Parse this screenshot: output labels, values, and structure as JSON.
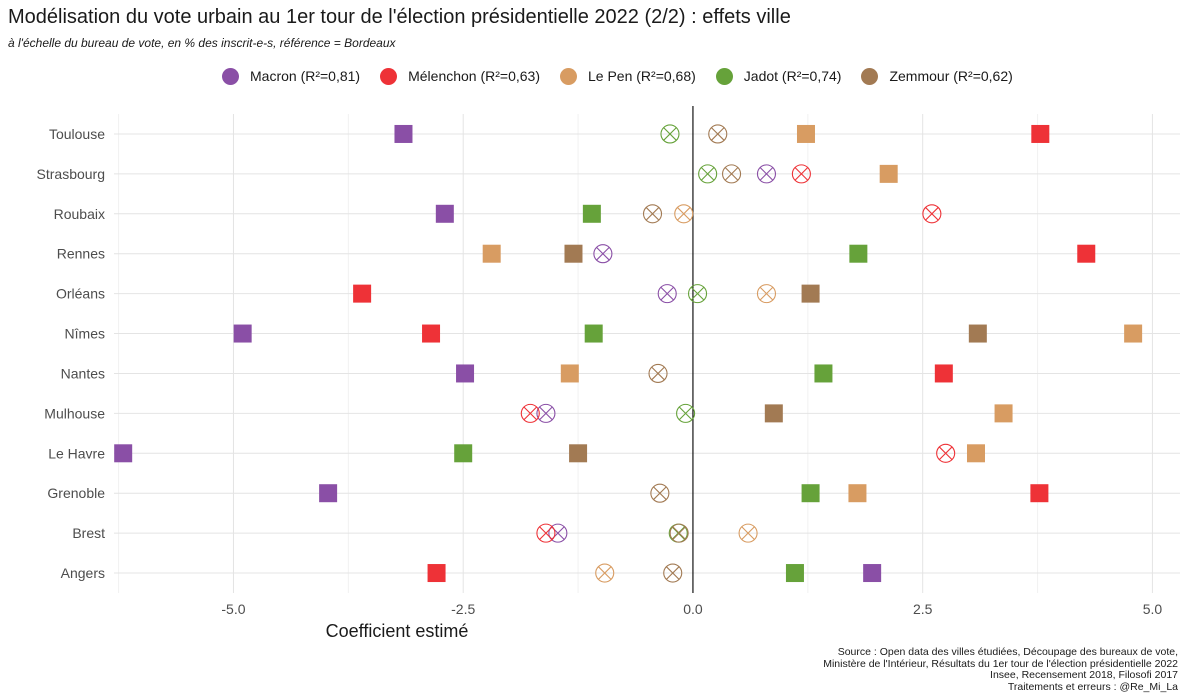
{
  "chart_data": {
    "type": "scatter",
    "title": "Modélisation du vote urbain au 1er tour de l'élection présidentielle 2022 (2/2) : effets ville",
    "subtitle": "à l'échelle du bureau de vote, en % des inscrit-e-s, référence = Bordeaux",
    "xlabel": "Coefficient estimé",
    "ylabel": "",
    "xlim": [
      -6.3,
      5.3
    ],
    "xticks": [
      -5,
      -2.5,
      0,
      2.5,
      5
    ],
    "xtick_labels": [
      "-5.0",
      "-2.5",
      "0.0",
      "2.5",
      "5.0"
    ],
    "grid": true,
    "legend_position": "top",
    "marker_note": "filled square = significant coefficient, circled cross = non-significant",
    "categories": [
      "Toulouse",
      "Strasbourg",
      "Roubaix",
      "Rennes",
      "Orléans",
      "Nîmes",
      "Nantes",
      "Mulhouse",
      "Le Havre",
      "Grenoble",
      "Brest",
      "Angers"
    ],
    "series": [
      {
        "name": "Macron (R²=0,81)",
        "color": "#8a4fa6",
        "values": [
          -3.15,
          0.8,
          -2.7,
          -0.98,
          -0.28,
          -4.9,
          -2.48,
          -1.6,
          -6.2,
          -3.97,
          -1.47,
          1.95
        ],
        "significant": [
          true,
          false,
          true,
          false,
          false,
          true,
          true,
          false,
          true,
          true,
          false,
          true
        ]
      },
      {
        "name": "Mélenchon (R²=0,63)",
        "color": "#ee3237",
        "values": [
          3.78,
          1.18,
          2.6,
          4.28,
          -3.6,
          -2.85,
          2.73,
          -1.77,
          2.75,
          3.77,
          -1.6,
          -2.79
        ],
        "significant": [
          true,
          false,
          false,
          true,
          true,
          true,
          true,
          false,
          false,
          true,
          false,
          true
        ]
      },
      {
        "name": "Le Pen (R²=0,68)",
        "color": "#d89c62",
        "values": [
          1.23,
          2.13,
          -0.1,
          -2.19,
          0.8,
          4.79,
          -1.34,
          3.38,
          3.08,
          1.79,
          0.6,
          -0.96
        ],
        "significant": [
          true,
          true,
          false,
          true,
          false,
          true,
          true,
          true,
          true,
          true,
          false,
          false
        ]
      },
      {
        "name": "Jadot (R²=0,74)",
        "color": "#66a23a",
        "values": [
          -0.25,
          0.16,
          -1.1,
          1.8,
          0.05,
          -1.08,
          1.42,
          -0.08,
          -2.5,
          1.28,
          -0.16,
          1.11
        ],
        "significant": [
          false,
          false,
          true,
          true,
          false,
          true,
          true,
          false,
          true,
          true,
          false,
          true
        ]
      },
      {
        "name": "Zemmour (R²=0,62)",
        "color": "#a27a53",
        "values": [
          0.27,
          0.42,
          -0.44,
          -1.3,
          1.28,
          3.1,
          -0.38,
          0.88,
          -1.25,
          -0.36,
          -0.15,
          -0.22
        ],
        "significant": [
          false,
          false,
          false,
          true,
          true,
          true,
          false,
          true,
          true,
          false,
          false,
          false
        ]
      }
    ]
  },
  "source": {
    "lines": [
      "Source : Open data des villes étudiées, Découpage des bureaux de vote,",
      "Ministère de l'Intérieur, Résultats du 1er tour de l'élection présidentielle 2022",
      "Insee, Recensement 2018, Filosofi 2017",
      "Traitements et erreurs : @Re_Mi_La"
    ]
  }
}
